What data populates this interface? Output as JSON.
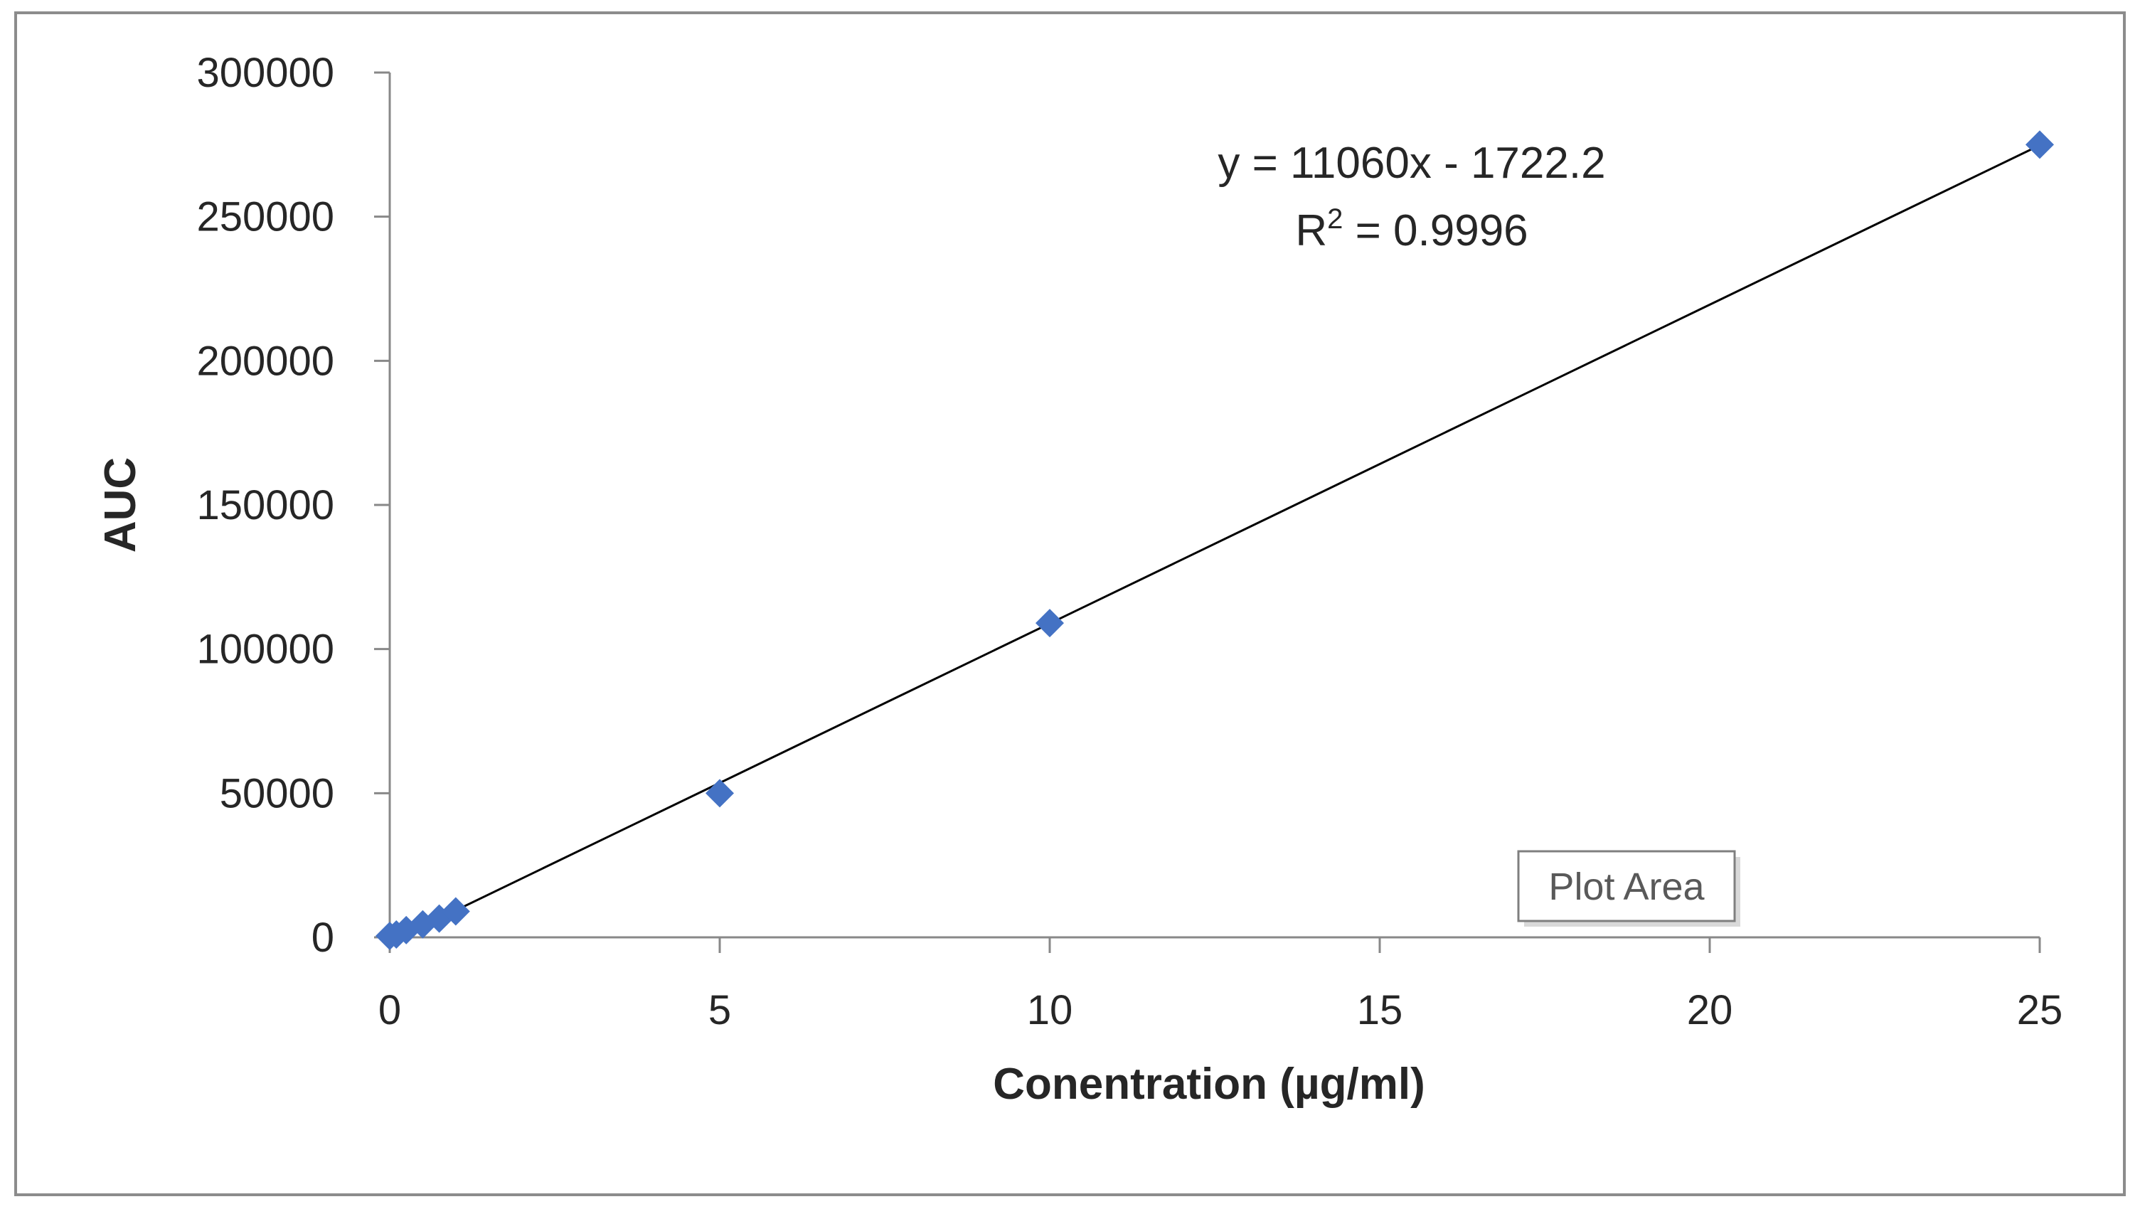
{
  "chart_data": {
    "type": "scatter",
    "title": "",
    "xlabel": "Conentration (µg/ml)",
    "ylabel": "AUC",
    "xlim": [
      0,
      25
    ],
    "ylim": [
      0,
      300000
    ],
    "x_ticks": [
      0,
      5,
      10,
      15,
      20,
      25
    ],
    "y_ticks": [
      0,
      50000,
      100000,
      150000,
      200000,
      250000,
      300000
    ],
    "grid": false,
    "series": [
      {
        "name": "AUC",
        "marker": "diamond",
        "color": "#4472C4",
        "points": [
          {
            "x": 0,
            "y": 500
          },
          {
            "x": 0.1,
            "y": 1000
          },
          {
            "x": 0.25,
            "y": 2500
          },
          {
            "x": 0.5,
            "y": 4500
          },
          {
            "x": 0.75,
            "y": 6500
          },
          {
            "x": 1,
            "y": 9000
          },
          {
            "x": 5,
            "y": 50000
          },
          {
            "x": 10,
            "y": 109000
          },
          {
            "x": 25,
            "y": 275000
          }
        ]
      }
    ],
    "trendline": {
      "type": "linear",
      "slope": 11060,
      "intercept": -1722.2,
      "x_range": [
        0.25,
        25
      ],
      "color": "#000000"
    },
    "annotations": {
      "equation": "y = 11060x - 1722.2",
      "r_squared_prefix": "R",
      "r_squared_sup": "2",
      "r_squared_value": " = 0.9996"
    },
    "tooltip": "Plot Area"
  }
}
